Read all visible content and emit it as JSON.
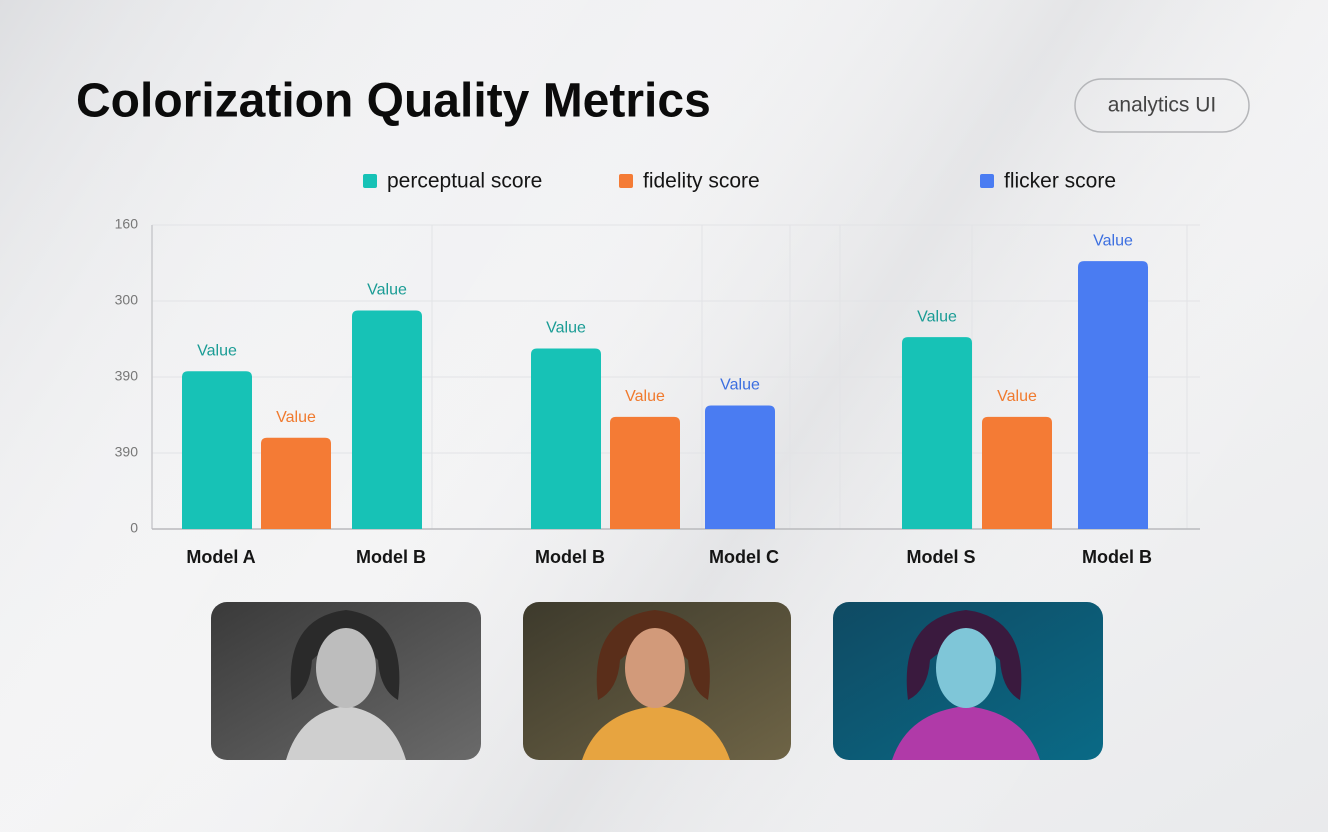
{
  "header": {
    "title": "Colorization Quality Metrics",
    "badge": "analytics UI"
  },
  "chart_data": {
    "type": "bar",
    "categories": [
      "Model A",
      null,
      "Model B",
      "Model B",
      null,
      "Model C",
      "Model S",
      null,
      "Model B"
    ],
    "series": [
      {
        "name": "perceptual score",
        "color": "#17c2b6",
        "label_color": "#1a9c95",
        "values": [
          83,
          null,
          115,
          95,
          null,
          null,
          101,
          null,
          null
        ],
        "value_labels": [
          "Value",
          null,
          "Value",
          "Value",
          null,
          null,
          "Value",
          null,
          null
        ]
      },
      {
        "name": "fidelity score",
        "color": "#f47b35",
        "label_color": "#f07a2e",
        "values": [
          null,
          48,
          null,
          null,
          59,
          null,
          null,
          59,
          null
        ],
        "value_labels": [
          null,
          "Value",
          null,
          null,
          "Value",
          null,
          null,
          "Value",
          null
        ]
      },
      {
        "name": "flicker score",
        "color": "#4a7cf2",
        "label_color": "#3c6fe0",
        "values": [
          null,
          null,
          null,
          null,
          null,
          65,
          null,
          null,
          141
        ],
        "value_labels": [
          null,
          null,
          null,
          null,
          null,
          "Value",
          null,
          null,
          "Value"
        ]
      }
    ],
    "ylim": [
      0,
      160
    ],
    "yticks": [
      0,
      {
        "value": 40,
        "label": "390"
      },
      {
        "value": 80,
        "label": "390"
      },
      {
        "value": 120,
        "label": "300"
      },
      160
    ],
    "grid": true
  }
}
